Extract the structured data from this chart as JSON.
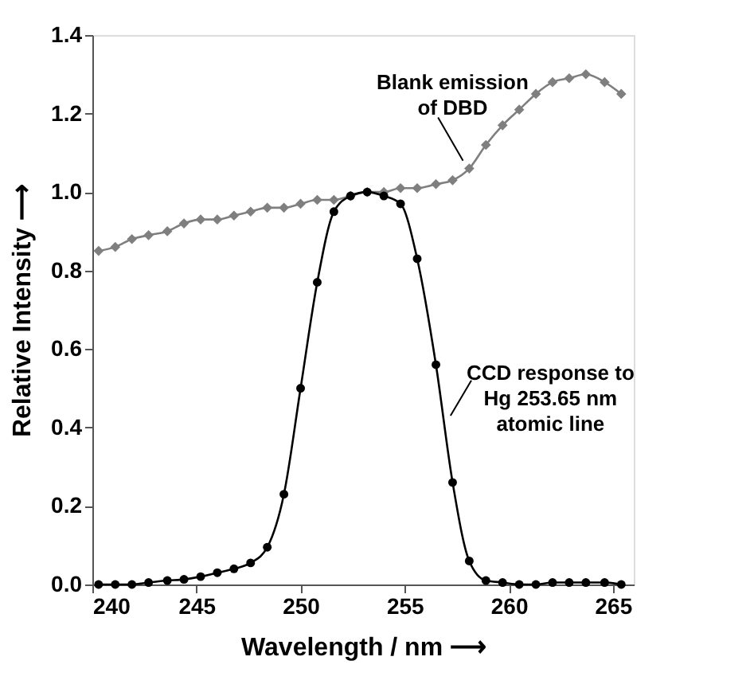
{
  "chart_data": {
    "type": "line",
    "xlabel": "Wavelength / nm ⟶",
    "ylabel": "Relative Intensity ⟶",
    "x": [
      240.3,
      241.1,
      241.9,
      242.7,
      243.6,
      244.4,
      245.2,
      246.0,
      246.8,
      247.6,
      248.4,
      249.2,
      250.0,
      250.8,
      251.6,
      252.4,
      253.2,
      254.0,
      254.8,
      255.6,
      256.5,
      257.3,
      258.1,
      258.9,
      259.7,
      260.5,
      261.3,
      262.1,
      262.9,
      263.7,
      264.6,
      265.4
    ],
    "series": [
      {
        "color": "#7f7f7f",
        "marker": "diamond",
        "values": [
          0.85,
          0.86,
          0.88,
          0.89,
          0.9,
          0.92,
          0.93,
          0.93,
          0.94,
          0.95,
          0.96,
          0.96,
          0.97,
          0.98,
          0.98,
          0.99,
          1.0,
          1.0,
          1.01,
          1.01,
          1.02,
          1.03,
          1.06,
          1.12,
          1.17,
          1.21,
          1.25,
          1.28,
          1.29,
          1.3,
          1.28,
          1.25
        ]
      },
      {
        "color": "#000000",
        "marker": "circle",
        "values": [
          0.0,
          0.0,
          0.0,
          0.005,
          0.01,
          0.013,
          0.02,
          0.03,
          0.04,
          0.055,
          0.095,
          0.23,
          0.5,
          0.77,
          0.95,
          0.99,
          1.0,
          0.99,
          0.97,
          0.83,
          0.56,
          0.26,
          0.06,
          0.01,
          0.005,
          0.0,
          0.0,
          0.005,
          0.005,
          0.005,
          0.005,
          0.0
        ]
      }
    ],
    "xlim": [
      240,
      266
    ],
    "xticks": [
      240,
      245,
      250,
      255,
      260,
      265
    ],
    "ylim": [
      0,
      1.4
    ],
    "yticks": [
      {
        "value": 0,
        "label": "0.0"
      },
      {
        "value": 0.2,
        "label": "0.2"
      },
      {
        "value": 0.4,
        "label": "0.4"
      },
      {
        "value": 0.6,
        "label": "0.6"
      },
      {
        "value": 0.8,
        "label": "0.8"
      },
      {
        "value": 1,
        "label": "1.0"
      },
      {
        "value": 1.2,
        "label": "1.2"
      },
      {
        "value": 1.4,
        "label": "1.4"
      }
    ],
    "grid": false,
    "line_style": "solid",
    "annotations": [
      {
        "text": "Blank emission\nof DBD",
        "x": 257.8,
        "y": 1.08
      },
      {
        "text": "CCD response to\nHg 253.65 nm\natomic line",
        "x": 257.2,
        "y": 0.43
      }
    ]
  }
}
